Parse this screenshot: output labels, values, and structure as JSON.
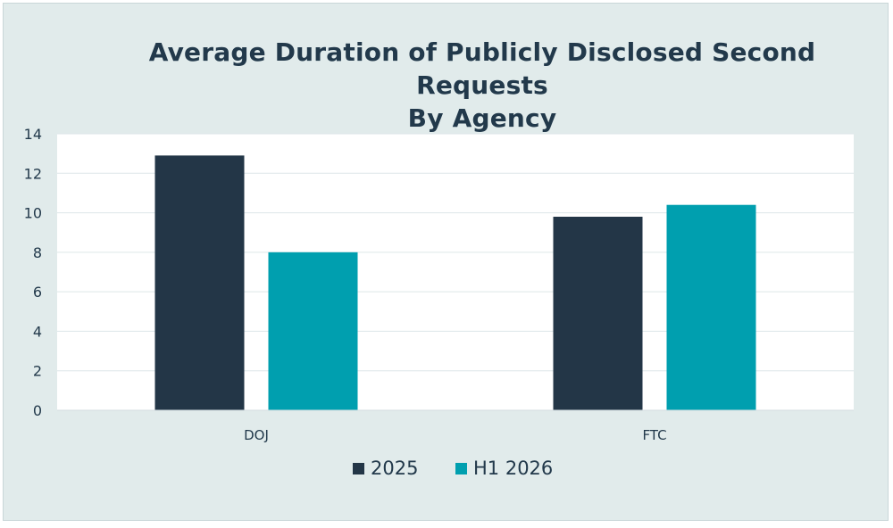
{
  "chart_data": {
    "type": "bar",
    "title_lines": [
      "Average Duration of Publicly Disclosed Second Requests",
      "By Agency"
    ],
    "categories": [
      "DOJ",
      "FTC"
    ],
    "series": [
      {
        "name": "2025",
        "values": [
          12.9,
          9.8
        ],
        "color": "#233647"
      },
      {
        "name": "H1 2026",
        "values": [
          8.0,
          10.4
        ],
        "color": "#009faf"
      }
    ],
    "ylim": [
      0,
      14
    ],
    "yticks": [
      0,
      2,
      4,
      6,
      8,
      10,
      12,
      14
    ],
    "grid": true,
    "legend_position": "bottom"
  },
  "colors": {
    "frame_background": "#e1ebeb",
    "plot_background": "#ffffff",
    "gridline": "#dde6e8",
    "text": "#22394b"
  }
}
